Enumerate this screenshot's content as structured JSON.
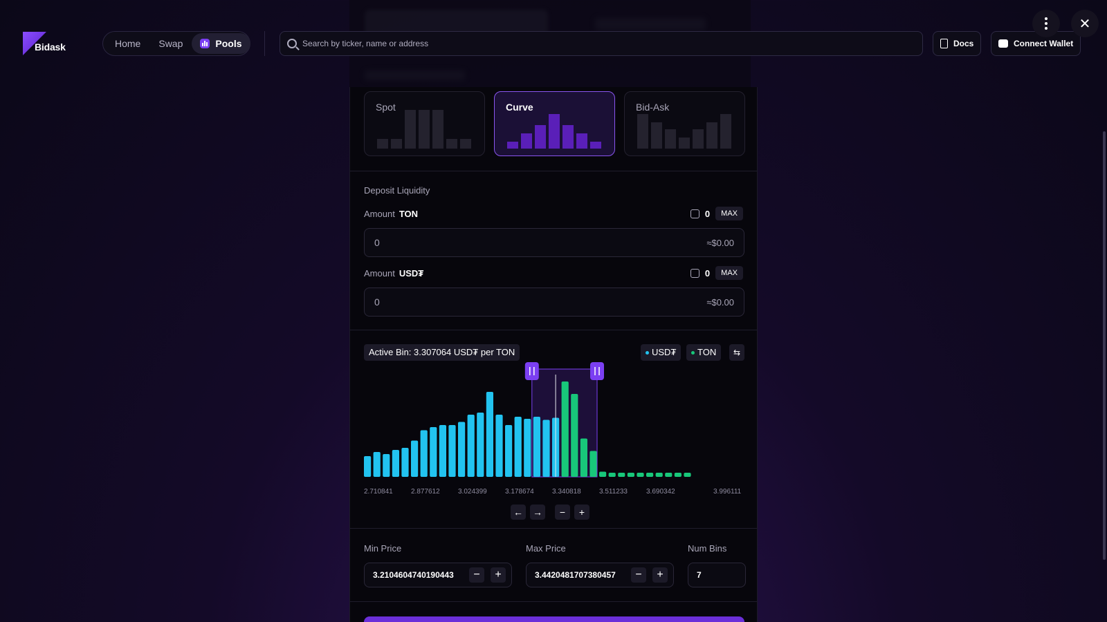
{
  "header": {
    "logo_text": "Bidask",
    "nav": [
      {
        "label": "Home"
      },
      {
        "label": "Swap"
      },
      {
        "label": "Pools"
      }
    ],
    "search_placeholder": "Search by ticker, name or address",
    "docs_label": "Docs",
    "connect_label": "Connect Wallet"
  },
  "shapes": [
    {
      "label": "Spot",
      "bars": [
        14,
        14,
        56,
        56,
        56,
        14,
        14
      ]
    },
    {
      "label": "Curve",
      "bars": [
        10,
        22,
        34,
        50,
        34,
        22,
        10
      ]
    },
    {
      "label": "Bid-Ask",
      "bars": [
        50,
        38,
        28,
        16,
        28,
        38,
        50
      ]
    }
  ],
  "deposit": {
    "title": "Deposit Liquidity",
    "amount_label": "Amount",
    "tokens": [
      {
        "symbol": "TON",
        "balance": "0",
        "max": "MAX",
        "value": "0",
        "usd": "≈$0.00"
      },
      {
        "symbol": "USD₮",
        "balance": "0",
        "max": "MAX",
        "value": "0",
        "usd": "≈$0.00"
      }
    ]
  },
  "active_bin_label": "Active Bin: 3.307064 USD₮ per TON",
  "legend": [
    {
      "label": "USD₮",
      "color": "#22c3f0"
    },
    {
      "label": "TON",
      "color": "#18c77a"
    }
  ],
  "chart_data": {
    "type": "bar",
    "x_ticks": [
      "2.710841",
      "2.877612",
      "3.024399",
      "3.178674",
      "3.340818",
      "3.511233",
      "3.690342",
      "3.996111"
    ],
    "usdt_values": [
      20,
      24,
      22,
      26,
      28,
      35,
      45,
      48,
      50,
      50,
      53,
      60,
      62,
      82,
      60,
      50,
      58,
      56,
      58,
      55,
      57
    ],
    "ton_values": [
      92,
      80,
      37,
      25,
      5,
      3,
      1,
      1,
      1,
      1,
      2,
      2,
      2,
      2
    ],
    "range_start_index": 18,
    "range_end_index": 24,
    "active_index": 20
  },
  "range": {
    "min_label": "Min Price",
    "min_value": "3.2104604740190443",
    "max_label": "Max Price",
    "max_value": "3.4420481707380457",
    "bins_label": "Num Bins",
    "bins_value": "7"
  }
}
